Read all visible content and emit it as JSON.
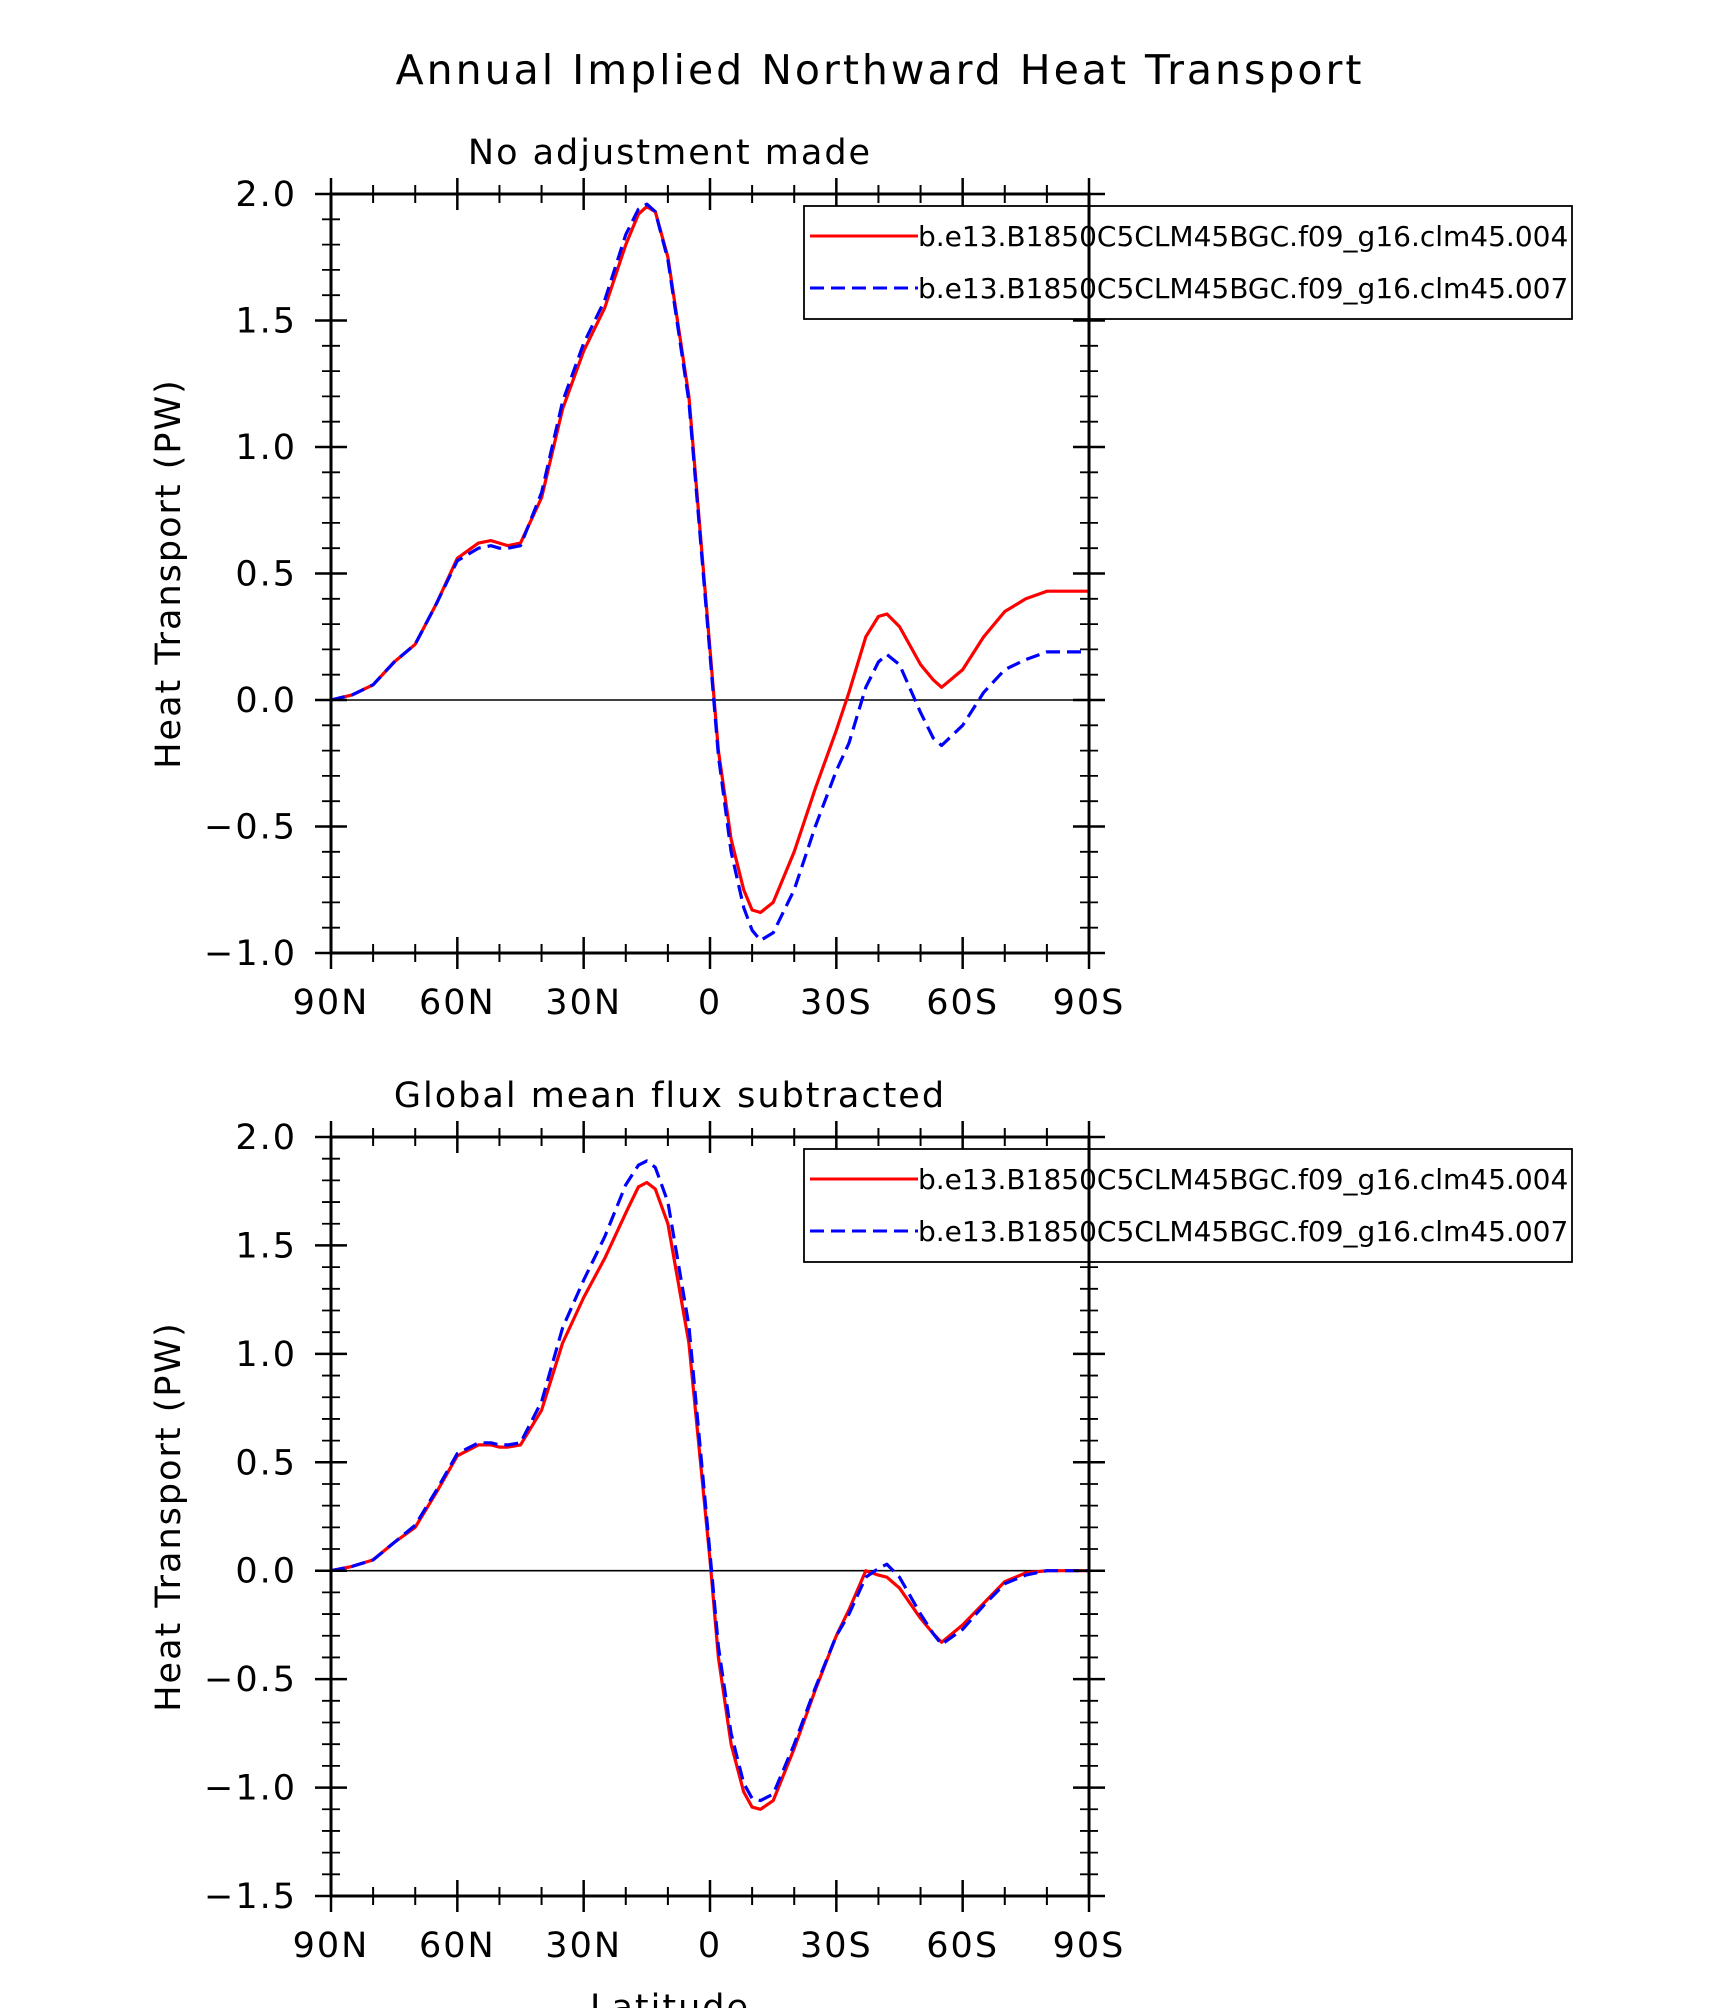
{
  "figure": {
    "title": "Annual Implied Northward Heat Transport"
  },
  "chart_data": [
    {
      "type": "line",
      "title": "No adjustment made",
      "xlabel": "",
      "ylabel": "Heat Transport (PW)",
      "xlim": [
        90,
        -90
      ],
      "ylim": [
        -1.0,
        2.0
      ],
      "x_ticks": [
        90,
        60,
        30,
        0,
        -30,
        -60,
        -90
      ],
      "x_tick_labels": [
        "90N",
        "60N",
        "30N",
        "0",
        "30S",
        "60S",
        "90S"
      ],
      "y_ticks": [
        -1.0,
        -0.5,
        0.0,
        0.5,
        1.0,
        1.5,
        2.0
      ],
      "y_tick_labels": [
        "−1.0",
        "−0.5",
        "0.0",
        "0.5",
        "1.0",
        "1.5",
        "2.0"
      ],
      "zero_line": true,
      "legend_position": "top-right",
      "series": [
        {
          "name": "b.e13.B1850C5CLM45BGC.f09_g16.clm45.004",
          "color": "#ff0000",
          "dash": "solid",
          "x": [
            90,
            85,
            80,
            75,
            70,
            65,
            60,
            55,
            52,
            50,
            48,
            45,
            40,
            35,
            30,
            25,
            20,
            17,
            15,
            13,
            10,
            5,
            0,
            -2,
            -5,
            -8,
            -10,
            -12,
            -15,
            -20,
            -25,
            -30,
            -33,
            -37,
            -40,
            -42,
            -45,
            -50,
            -53,
            -55,
            -60,
            -65,
            -70,
            -75,
            -80,
            -85,
            -90
          ],
          "y": [
            0.0,
            0.02,
            0.06,
            0.15,
            0.22,
            0.38,
            0.56,
            0.62,
            0.63,
            0.62,
            0.61,
            0.62,
            0.8,
            1.15,
            1.38,
            1.55,
            1.8,
            1.92,
            1.95,
            1.93,
            1.75,
            1.2,
            0.2,
            -0.2,
            -0.55,
            -0.75,
            -0.83,
            -0.84,
            -0.8,
            -0.6,
            -0.35,
            -0.12,
            0.03,
            0.25,
            0.33,
            0.34,
            0.29,
            0.14,
            0.08,
            0.05,
            0.12,
            0.25,
            0.35,
            0.4,
            0.43,
            0.43,
            0.43
          ]
        },
        {
          "name": "b.e13.B1850C5CLM45BGC.f09_g16.clm45.007",
          "color": "#0000ff",
          "dash": "dashed",
          "x": [
            90,
            85,
            80,
            75,
            70,
            65,
            60,
            55,
            52,
            50,
            48,
            45,
            40,
            35,
            30,
            25,
            20,
            17,
            15,
            13,
            10,
            5,
            0,
            -2,
            -5,
            -8,
            -10,
            -12,
            -15,
            -20,
            -25,
            -30,
            -33,
            -37,
            -40,
            -42,
            -45,
            -50,
            -53,
            -55,
            -60,
            -65,
            -70,
            -75,
            -80,
            -85,
            -90
          ],
          "y": [
            0.0,
            0.02,
            0.06,
            0.15,
            0.22,
            0.38,
            0.55,
            0.6,
            0.61,
            0.6,
            0.6,
            0.61,
            0.82,
            1.18,
            1.41,
            1.58,
            1.84,
            1.94,
            1.96,
            1.93,
            1.74,
            1.18,
            0.18,
            -0.22,
            -0.6,
            -0.82,
            -0.91,
            -0.95,
            -0.92,
            -0.75,
            -0.5,
            -0.28,
            -0.17,
            0.05,
            0.15,
            0.18,
            0.14,
            -0.05,
            -0.15,
            -0.18,
            -0.1,
            0.03,
            0.12,
            0.16,
            0.19,
            0.19,
            0.19
          ]
        }
      ]
    },
    {
      "type": "line",
      "title": "Global mean flux subtracted",
      "xlabel": "Latitude",
      "ylabel": "Heat Transport (PW)",
      "xlim": [
        90,
        -90
      ],
      "ylim": [
        -1.5,
        2.0
      ],
      "x_ticks": [
        90,
        60,
        30,
        0,
        -30,
        -60,
        -90
      ],
      "x_tick_labels": [
        "90N",
        "60N",
        "30N",
        "0",
        "30S",
        "60S",
        "90S"
      ],
      "y_ticks": [
        -1.5,
        -1.0,
        -0.5,
        0.0,
        0.5,
        1.0,
        1.5,
        2.0
      ],
      "y_tick_labels": [
        "−1.5",
        "−1.0",
        "−0.5",
        "0.0",
        "0.5",
        "1.0",
        "1.5",
        "2.0"
      ],
      "zero_line": true,
      "legend_position": "top-right",
      "series": [
        {
          "name": "b.e13.B1850C5CLM45BGC.f09_g16.clm45.004",
          "color": "#ff0000",
          "dash": "solid",
          "x": [
            90,
            85,
            80,
            75,
            70,
            65,
            60,
            55,
            52,
            50,
            48,
            45,
            40,
            35,
            30,
            25,
            20,
            17,
            15,
            13,
            10,
            5,
            0,
            -2,
            -5,
            -8,
            -10,
            -12,
            -15,
            -20,
            -25,
            -30,
            -33,
            -37,
            -40,
            -42,
            -45,
            -50,
            -53,
            -55,
            -60,
            -65,
            -70,
            -75,
            -80,
            -85,
            -90
          ],
          "y": [
            0.0,
            0.02,
            0.05,
            0.13,
            0.2,
            0.36,
            0.53,
            0.58,
            0.58,
            0.57,
            0.57,
            0.58,
            0.74,
            1.05,
            1.26,
            1.44,
            1.65,
            1.77,
            1.79,
            1.76,
            1.6,
            1.05,
            0.05,
            -0.4,
            -0.8,
            -1.02,
            -1.09,
            -1.1,
            -1.06,
            -0.82,
            -0.55,
            -0.3,
            -0.18,
            0.0,
            -0.02,
            -0.03,
            -0.08,
            -0.22,
            -0.29,
            -0.33,
            -0.25,
            -0.15,
            -0.05,
            -0.01,
            0.0,
            0.0,
            0.0
          ]
        },
        {
          "name": "b.e13.B1850C5CLM45BGC.f09_g16.clm45.007",
          "color": "#0000ff",
          "dash": "dashed",
          "x": [
            90,
            85,
            80,
            75,
            70,
            65,
            60,
            55,
            52,
            50,
            48,
            45,
            40,
            35,
            30,
            25,
            20,
            17,
            15,
            13,
            10,
            5,
            0,
            -2,
            -5,
            -8,
            -10,
            -12,
            -15,
            -20,
            -25,
            -30,
            -33,
            -37,
            -40,
            -42,
            -45,
            -50,
            -53,
            -55,
            -60,
            -65,
            -70,
            -75,
            -80,
            -85,
            -90
          ],
          "y": [
            0.0,
            0.02,
            0.05,
            0.13,
            0.21,
            0.37,
            0.54,
            0.59,
            0.59,
            0.58,
            0.58,
            0.59,
            0.78,
            1.12,
            1.34,
            1.54,
            1.78,
            1.87,
            1.89,
            1.86,
            1.7,
            1.13,
            0.08,
            -0.35,
            -0.75,
            -0.98,
            -1.05,
            -1.06,
            -1.03,
            -0.8,
            -0.54,
            -0.3,
            -0.2,
            -0.03,
            0.01,
            0.03,
            -0.03,
            -0.2,
            -0.29,
            -0.34,
            -0.27,
            -0.16,
            -0.06,
            -0.02,
            0.0,
            0.0,
            0.0
          ]
        }
      ]
    }
  ]
}
